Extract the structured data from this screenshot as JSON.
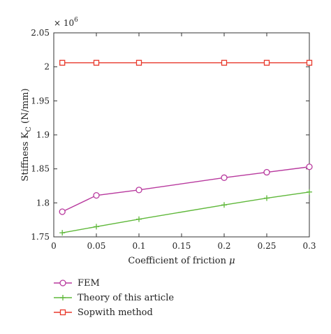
{
  "chart_data": {
    "type": "line",
    "title": "",
    "xlabel": "Coefficient of friction",
    "xlabel_symbol": "μ",
    "ylabel": "Stiffness K",
    "ylabel_subscript": "C",
    "ylabel_unit": "(N/mm)",
    "y_multiplier_prefix": "× 10",
    "y_multiplier_exponent": "6",
    "xlim": [
      0,
      0.3
    ],
    "ylim": [
      1.75,
      2.05
    ],
    "x_ticks": [
      0,
      0.05,
      0.1,
      0.15,
      0.2,
      0.25,
      0.3
    ],
    "x_tick_labels": [
      "0",
      "0.05",
      "0.1",
      "0.15",
      "0.2",
      "0.25",
      "0.3"
    ],
    "y_ticks": [
      1.75,
      1.8,
      1.85,
      1.9,
      1.95,
      2.0,
      2.05
    ],
    "y_tick_labels": [
      "1.75",
      "1.8",
      "1.85",
      "1.9",
      "1.95",
      "2",
      "2.05"
    ],
    "grid": false,
    "legend_position": "bottom",
    "series": [
      {
        "name": "FEM",
        "color": "#b8399e",
        "marker": "circle",
        "x": [
          0.01,
          0.05,
          0.1,
          0.2,
          0.25,
          0.3
        ],
        "y": [
          1.787,
          1.811,
          1.819,
          1.837,
          1.845,
          1.853
        ]
      },
      {
        "name": "Theory of this article",
        "color": "#5fb83a",
        "marker": "plus",
        "x": [
          0.01,
          0.05,
          0.1,
          0.2,
          0.25,
          0.3
        ],
        "y": [
          1.756,
          1.765,
          1.776,
          1.797,
          1.807,
          1.816
        ]
      },
      {
        "name": "Sopwith method",
        "color": "#e8392b",
        "marker": "square",
        "x": [
          0.01,
          0.05,
          0.1,
          0.2,
          0.25,
          0.3
        ],
        "y": [
          2.006,
          2.006,
          2.006,
          2.006,
          2.006,
          2.006
        ]
      }
    ]
  }
}
